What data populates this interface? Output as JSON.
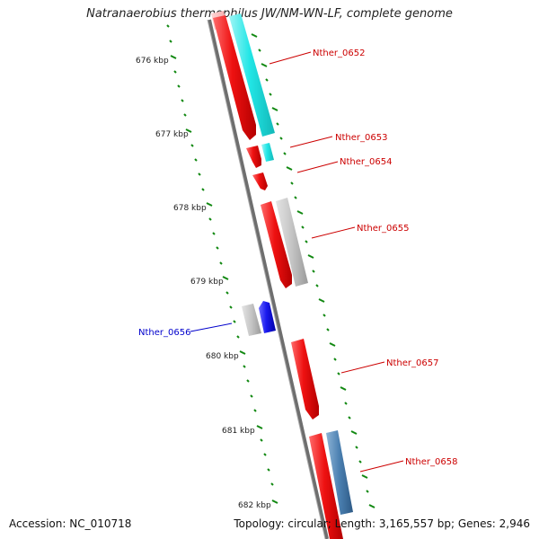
{
  "title": "Natranaerobius thermophilus JW/NM-WN-LF, complete genome",
  "footer": {
    "accession": "Accession: NC_010718",
    "summary": "Topology: circular; Length: 3,165,557 bp; Genes: 2,946"
  },
  "scale_ticks": [
    "676 kbp",
    "677 kbp",
    "678 kbp",
    "679 kbp",
    "680 kbp",
    "681 kbp",
    "682 kbp"
  ],
  "genes": [
    {
      "name": "Nther_0652",
      "strand": "forward",
      "color": "#cc0000"
    },
    {
      "name": "Nther_0653",
      "strand": "forward",
      "color": "#cc0000"
    },
    {
      "name": "Nther_0654",
      "strand": "forward",
      "color": "#cc0000"
    },
    {
      "name": "Nther_0655",
      "strand": "forward",
      "color": "#cc0000"
    },
    {
      "name": "Nther_0656",
      "strand": "reverse",
      "color": "#0000cc"
    },
    {
      "name": "Nther_0657",
      "strand": "forward",
      "color": "#cc0000"
    },
    {
      "name": "Nther_0658",
      "strand": "forward",
      "color": "#cc0000"
    }
  ],
  "colors": {
    "forward_cds": "#ee1111",
    "reverse_cds": "#1a1aee",
    "rna_cyan": "#22e6e6",
    "gray_feature": "#bbbbbb",
    "steel_feature": "#4a7fb0",
    "backbone": "#777777",
    "gc_marks": "#118811"
  }
}
